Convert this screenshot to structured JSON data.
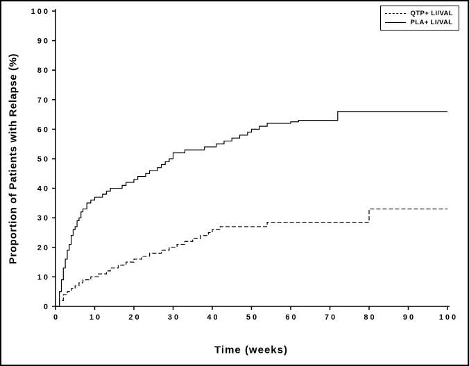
{
  "figure": {
    "background_color": "#ffffff",
    "border_color": "#000000"
  },
  "chart_data": {
    "type": "line",
    "subtype": "kaplan-meier-step",
    "title": "",
    "xlabel": "Time (weeks)",
    "ylabel": "Proportion of Patients with Relapse (%)",
    "xlim": [
      0,
      100
    ],
    "ylim": [
      0,
      100
    ],
    "xticks": [
      0,
      10,
      20,
      30,
      40,
      50,
      60,
      70,
      80,
      90,
      100
    ],
    "yticks": [
      0,
      10,
      20,
      30,
      40,
      50,
      60,
      70,
      80,
      90,
      100
    ],
    "grid": false,
    "legend_position": "top-right",
    "line_color": "#000000",
    "axis_color": "#000000",
    "series": [
      {
        "name": "QTP+ LI/VAL",
        "key": "qtp-li-val",
        "dash": "dashed",
        "points": [
          [
            0,
            0
          ],
          [
            1,
            2
          ],
          [
            2,
            4
          ],
          [
            3,
            5
          ],
          [
            4,
            6
          ],
          [
            5,
            7
          ],
          [
            6,
            8
          ],
          [
            7,
            9
          ],
          [
            9,
            10
          ],
          [
            11,
            11
          ],
          [
            13,
            12
          ],
          [
            14,
            13
          ],
          [
            16,
            14
          ],
          [
            18,
            15
          ],
          [
            20,
            16
          ],
          [
            22,
            17
          ],
          [
            24,
            18
          ],
          [
            27,
            19
          ],
          [
            29,
            20
          ],
          [
            31,
            21
          ],
          [
            33,
            22
          ],
          [
            35,
            23
          ],
          [
            37,
            24
          ],
          [
            39,
            25
          ],
          [
            40,
            26
          ],
          [
            42,
            27
          ],
          [
            54,
            28.5
          ],
          [
            80,
            33
          ],
          [
            100,
            33
          ]
        ]
      },
      {
        "name": "PLA+ LI/VAL",
        "key": "pla-li-val",
        "dash": "solid",
        "points": [
          [
            0,
            0
          ],
          [
            1,
            5
          ],
          [
            1.5,
            9
          ],
          [
            2,
            13
          ],
          [
            2.5,
            16
          ],
          [
            3,
            19
          ],
          [
            3.5,
            21
          ],
          [
            4,
            24
          ],
          [
            4.5,
            26
          ],
          [
            5,
            27
          ],
          [
            5.5,
            29
          ],
          [
            6,
            30
          ],
          [
            6.5,
            32
          ],
          [
            7,
            33
          ],
          [
            8,
            35
          ],
          [
            9,
            36
          ],
          [
            10,
            37
          ],
          [
            12,
            38
          ],
          [
            13,
            39
          ],
          [
            14,
            40
          ],
          [
            17,
            41
          ],
          [
            18,
            42
          ],
          [
            20,
            43
          ],
          [
            21,
            44
          ],
          [
            23,
            45
          ],
          [
            24,
            46
          ],
          [
            26,
            47
          ],
          [
            27,
            48
          ],
          [
            28,
            49
          ],
          [
            29,
            50
          ],
          [
            30,
            52
          ],
          [
            33,
            53
          ],
          [
            38,
            54
          ],
          [
            41,
            55
          ],
          [
            43,
            56
          ],
          [
            45,
            57
          ],
          [
            47,
            58
          ],
          [
            49,
            59
          ],
          [
            50,
            60
          ],
          [
            52,
            61
          ],
          [
            54,
            62
          ],
          [
            60,
            62.5
          ],
          [
            62,
            63
          ],
          [
            72,
            66
          ],
          [
            100,
            66
          ]
        ]
      }
    ]
  }
}
